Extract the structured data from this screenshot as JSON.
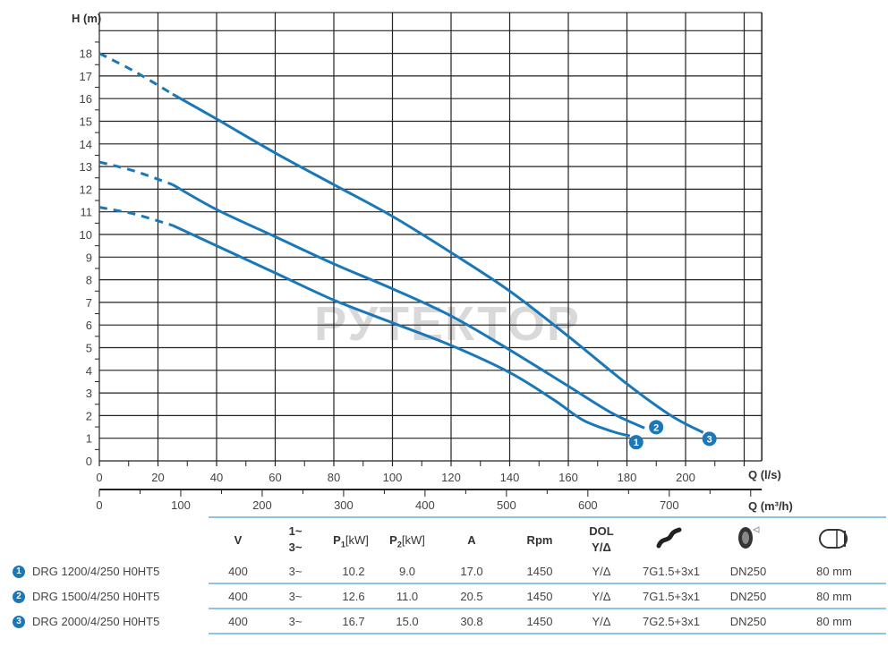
{
  "chart_data": {
    "type": "line",
    "ylabel": "H (m)",
    "xlabel": "Q (l/s)",
    "x2label": "Q (m³/h)",
    "xlim": [
      0,
      226
    ],
    "ylim": [
      0,
      19.8
    ],
    "x_ticks": [
      0,
      20,
      40,
      60,
      80,
      100,
      120,
      140,
      160,
      180,
      200
    ],
    "y_ticks": [
      0,
      1,
      2,
      3,
      4,
      5,
      6,
      7,
      8,
      9,
      10,
      11,
      12,
      13,
      14,
      15,
      16,
      17,
      18
    ],
    "x2_ticks": [
      0,
      100,
      200,
      300,
      400,
      500,
      600,
      700
    ],
    "grid": true,
    "line_color": "#1a78b8",
    "dashed_until": 25,
    "series": [
      {
        "name": "1",
        "points": [
          [
            0,
            11.2
          ],
          [
            12,
            10.9
          ],
          [
            25,
            10.4
          ],
          [
            40,
            9.5
          ],
          [
            60,
            8.3
          ],
          [
            80,
            7.1
          ],
          [
            100,
            6.1
          ],
          [
            120,
            5.1
          ],
          [
            140,
            3.9
          ],
          [
            155,
            2.7
          ],
          [
            165,
            1.8
          ],
          [
            175,
            1.3
          ],
          [
            181,
            1.1
          ]
        ]
      },
      {
        "name": "2",
        "points": [
          [
            0,
            13.2
          ],
          [
            12,
            12.8
          ],
          [
            25,
            12.2
          ],
          [
            40,
            11.1
          ],
          [
            60,
            9.9
          ],
          [
            80,
            8.7
          ],
          [
            100,
            7.6
          ],
          [
            120,
            6.4
          ],
          [
            140,
            4.9
          ],
          [
            160,
            3.3
          ],
          [
            175,
            2.1
          ],
          [
            186,
            1.45
          ]
        ]
      },
      {
        "name": "3",
        "points": [
          [
            0,
            18.0
          ],
          [
            12,
            17.2
          ],
          [
            25,
            16.2
          ],
          [
            40,
            15.1
          ],
          [
            60,
            13.6
          ],
          [
            80,
            12.2
          ],
          [
            100,
            10.8
          ],
          [
            120,
            9.2
          ],
          [
            140,
            7.5
          ],
          [
            160,
            5.5
          ],
          [
            180,
            3.4
          ],
          [
            195,
            2.0
          ],
          [
            206,
            1.25
          ]
        ]
      }
    ]
  },
  "watermark": "РУТЕКТОР",
  "table": {
    "headers": {
      "v": "V",
      "phase_1": "1~",
      "phase_3": "3~",
      "p1": "P",
      "p1_sub": "1",
      "p1_unit": "[kW]",
      "p2": "P",
      "p2_sub": "2",
      "p2_unit": "[kW]",
      "a": "A",
      "rpm": "Rpm",
      "dol": "DOL",
      "dol2": "Y/Δ",
      "cable_icon": "cable-icon",
      "flange_icon": "discharge-flange-icon",
      "solids_icon": "solids-passage-icon"
    },
    "rows": [
      {
        "num": "1",
        "model": "DRG 1200/4/250 H0HT5",
        "v": "400",
        "phase": "3~",
        "p1": "10.2",
        "p2": "9.0",
        "a": "17.0",
        "rpm": "1450",
        "dol": "Y/Δ",
        "cable": "7G1.5+3x1",
        "outlet": "DN250",
        "solids": "80 mm"
      },
      {
        "num": "2",
        "model": "DRG 1500/4/250 H0HT5",
        "v": "400",
        "phase": "3~",
        "p1": "12.6",
        "p2": "11.0",
        "a": "20.5",
        "rpm": "1450",
        "dol": "Y/Δ",
        "cable": "7G1.5+3x1",
        "outlet": "DN250",
        "solids": "80 mm"
      },
      {
        "num": "3",
        "model": "DRG 2000/4/250 H0HT5",
        "v": "400",
        "phase": "3~",
        "p1": "16.7",
        "p2": "15.0",
        "a": "30.8",
        "rpm": "1450",
        "dol": "Y/Δ",
        "cable": "7G2.5+3x1",
        "outlet": "DN250",
        "solids": "80 mm"
      }
    ]
  }
}
